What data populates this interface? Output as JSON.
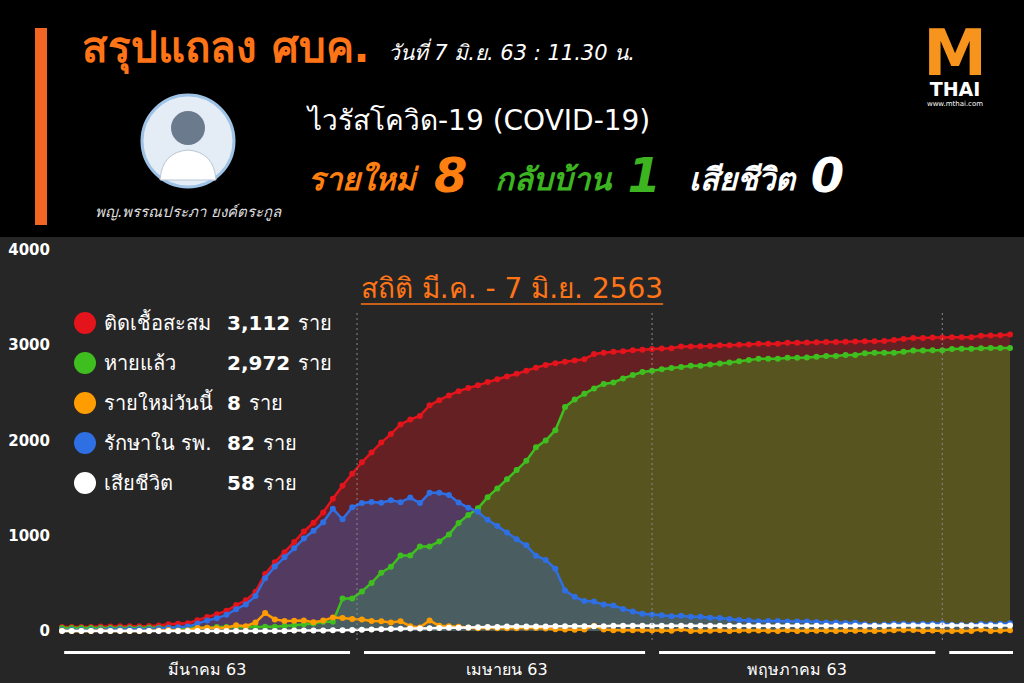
{
  "header": {
    "title": "สรุปแถลง ศบค.",
    "date": "วันที่ 7 มิ.ย. 63 : 11.30 น.",
    "speaker": "พญ.พรรณประภา ยงค์ตระกูล",
    "virus": "ไวรัสโควิด-19 (COVID-19)",
    "stats": [
      {
        "label": "รายใหม่",
        "value": 8,
        "color": "#ff7f11"
      },
      {
        "label": "กลับบ้าน",
        "value": 1,
        "color": "#3cb521"
      },
      {
        "label": "เสียชีวิต",
        "value": 0,
        "color": "#ffffff"
      }
    ]
  },
  "logo": {
    "mark": "M",
    "name": "THAI",
    "url": "www.mthai.com"
  },
  "chart_data": {
    "type": "line",
    "title": "สถิติ มี.ค. - 7 มิ.ย. 2563",
    "unit": "ราย",
    "categories": [
      null,
      null,
      null,
      null,
      null,
      null,
      null,
      null,
      null,
      null,
      null,
      null,
      null,
      null,
      null,
      "มีนาคม 63",
      null,
      null,
      null,
      null,
      null,
      null,
      null,
      null,
      null,
      null,
      null,
      null,
      null,
      null,
      null,
      null,
      null,
      null,
      null,
      null,
      null,
      null,
      null,
      null,
      null,
      null,
      null,
      null,
      null,
      null,
      "เมษายน 63",
      null,
      null,
      null,
      null,
      null,
      null,
      null,
      null,
      null,
      null,
      null,
      null,
      null,
      null,
      null,
      null,
      null,
      null,
      null,
      null,
      null,
      null,
      null,
      null,
      null,
      null,
      null,
      null,
      null,
      "พฤษภาคม 63",
      null,
      null,
      null,
      null,
      null,
      null,
      null,
      null,
      null,
      null,
      null,
      null,
      null,
      null,
      null,
      null,
      null,
      null,
      null,
      null,
      null,
      null
    ],
    "series": [
      {
        "name": "ติดเชื้อสะสม",
        "color": "#e3141b",
        "type": "area",
        "current": 3112,
        "current_label": "3,112",
        "values": [
          42,
          43,
          43,
          43,
          47,
          48,
          50,
          50,
          50,
          53,
          59,
          70,
          75,
          82,
          114,
          147,
          177,
          212,
          272,
          322,
          411,
          599,
          721,
          827,
          934,
          1045,
          1136,
          1245,
          1388,
          1524,
          1651,
          1771,
          1875,
          1978,
          2067,
          2169,
          2220,
          2258,
          2369,
          2423,
          2473,
          2518,
          2551,
          2579,
          2613,
          2643,
          2672,
          2700,
          2733,
          2765,
          2792,
          2811,
          2826,
          2839,
          2854,
          2907,
          2922,
          2931,
          2938,
          2947,
          2954,
          2960,
          2966,
          2969,
          2987,
          2988,
          2989,
          2992,
          2999,
          3000,
          3004,
          3009,
          3015,
          3017,
          3017,
          3025,
          3025,
          3028,
          3031,
          3033,
          3034,
          3037,
          3040,
          3042,
          3042,
          3045,
          3054,
          3065,
          3076,
          3077,
          3081,
          3082,
          3083,
          3084,
          3084,
          3101,
          3102,
          3104,
          3112
        ]
      },
      {
        "name": "หายแล้ว",
        "color": "#3fbf1f",
        "type": "area",
        "current": 2972,
        "current_label": "2,972",
        "values": [
          31,
          31,
          31,
          31,
          31,
          31,
          31,
          31,
          31,
          33,
          33,
          34,
          35,
          35,
          35,
          35,
          41,
          41,
          42,
          42,
          42,
          44,
          44,
          52,
          61,
          70,
          79,
          97,
          97,
          342,
          342,
          416,
          505,
          612,
          674,
          793,
          793,
          888,
          888,
          940,
          1013,
          1135,
          1218,
          1288,
          1405,
          1497,
          1593,
          1689,
          1787,
          1928,
          1999,
          2108,
          2352,
          2430,
          2490,
          2547,
          2594,
          2609,
          2652,
          2687,
          2719,
          2732,
          2747,
          2761,
          2772,
          2784,
          2784,
          2798,
          2808,
          2818,
          2832,
          2844,
          2857,
          2857,
          2857,
          2868,
          2868,
          2871,
          2880,
          2888,
          2888,
          2897,
          2897,
          2915,
          2921,
          2921,
          2921,
          2931,
          2945,
          2945,
          2947,
          2947,
          2961,
          2962,
          2963,
          2968,
          2971,
          2971,
          2972
        ]
      },
      {
        "name": "รายใหม่วันนี้",
        "color": "#ff9d00",
        "type": "line",
        "current": 8,
        "values": [
          2,
          1,
          0,
          0,
          4,
          1,
          2,
          0,
          0,
          3,
          6,
          11,
          5,
          7,
          32,
          33,
          30,
          35,
          60,
          50,
          89,
          188,
          122,
          106,
          107,
          111,
          91,
          109,
          143,
          136,
          127,
          120,
          104,
          103,
          89,
          102,
          51,
          38,
          111,
          54,
          50,
          45,
          33,
          28,
          34,
          30,
          29,
          28,
          33,
          32,
          27,
          19,
          15,
          13,
          15,
          53,
          15,
          9,
          7,
          9,
          7,
          6,
          6,
          3,
          18,
          1,
          1,
          3,
          7,
          1,
          4,
          5,
          6,
          2,
          0,
          8,
          0,
          3,
          3,
          2,
          1,
          3,
          3,
          2,
          0,
          3,
          9,
          11,
          11,
          1,
          4,
          1,
          1,
          1,
          0,
          17,
          1,
          2,
          8
        ]
      },
      {
        "name": "รักษาใน รพ.",
        "color": "#2f6fe4",
        "type": "area",
        "current": 82,
        "values": [
          10,
          11,
          11,
          11,
          15,
          16,
          18,
          18,
          18,
          19,
          25,
          35,
          39,
          46,
          78,
          111,
          135,
          170,
          229,
          279,
          368,
          554,
          676,
          774,
          869,
          971,
          1052,
          1142,
          1284,
          1173,
          1299,
          1343,
          1355,
          1347,
          1373,
          1353,
          1401,
          1343,
          1451,
          1451,
          1427,
          1348,
          1295,
          1251,
          1167,
          1103,
          1033,
          964,
          899,
          790,
          746,
          654,
          424,
          359,
          314,
          309,
          277,
          268,
          232,
          206,
          181,
          174,
          165,
          154,
          161,
          150,
          150,
          139,
          136,
          126,
          116,
          109,
          102,
          104,
          104,
          101,
          101,
          101,
          95,
          89,
          90,
          84,
          87,
          71,
          65,
          68,
          76,
          77,
          74,
          75,
          77,
          78,
          65,
          65,
          64,
          75,
          73,
          75,
          82
        ]
      },
      {
        "name": "เสียชีวิต",
        "color": "#ffffff",
        "type": "line",
        "current": 58,
        "values": [
          1,
          1,
          1,
          1,
          1,
          1,
          1,
          1,
          1,
          1,
          1,
          1,
          1,
          1,
          1,
          1,
          1,
          1,
          1,
          1,
          1,
          1,
          1,
          1,
          4,
          4,
          5,
          6,
          7,
          9,
          10,
          12,
          15,
          19,
          20,
          23,
          26,
          27,
          30,
          32,
          33,
          35,
          38,
          40,
          41,
          43,
          46,
          47,
          47,
          47,
          47,
          49,
          50,
          50,
          50,
          51,
          51,
          54,
          54,
          54,
          54,
          54,
          54,
          54,
          54,
          54,
          55,
          55,
          55,
          56,
          56,
          56,
          56,
          56,
          56,
          56,
          56,
          56,
          56,
          56,
          56,
          56,
          56,
          56,
          56,
          56,
          57,
          57,
          57,
          57,
          57,
          57,
          57,
          57,
          57,
          58,
          58,
          58,
          58
        ]
      }
    ],
    "ylim": [
      0,
      4000
    ],
    "yticks": [
      0,
      1000,
      2000,
      3000,
      4000
    ],
    "grid": false,
    "legend": "top-left",
    "marker": "circle"
  }
}
